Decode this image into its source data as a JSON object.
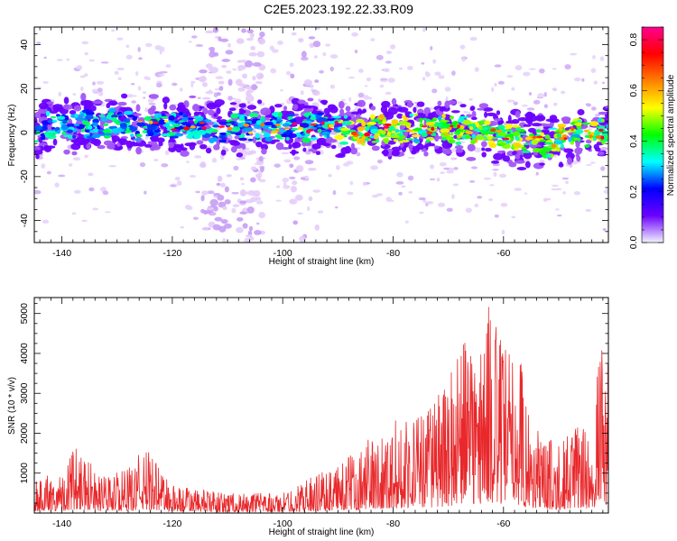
{
  "title": "C2E5.2023.192.22.33.R09",
  "chart_data": [
    {
      "type": "heatmap",
      "xlabel": "Height of straight line (km)",
      "ylabel": "Frequency (Hz)",
      "xlim": [
        -145,
        -41
      ],
      "ylim": [
        -50,
        48
      ],
      "xticks": [
        -140,
        -120,
        -100,
        -80,
        -60
      ],
      "yticks": [
        -40,
        -20,
        0,
        20,
        40
      ],
      "band_center_hz": [
        [
          -145,
          2
        ],
        [
          -130,
          4
        ],
        [
          -110,
          2
        ],
        [
          -95,
          3
        ],
        [
          -85,
          1
        ],
        [
          -75,
          2
        ],
        [
          -65,
          0
        ],
        [
          -57,
          -3
        ],
        [
          -52,
          -5
        ],
        [
          -48,
          0
        ],
        [
          -41,
          0
        ]
      ],
      "colorbar": {
        "label": "Normalized spectral amplitude",
        "range": [
          0,
          0.85
        ],
        "ticks": [
          0.0,
          0.2,
          0.4,
          0.6,
          0.8
        ],
        "colors": [
          "#f2f2ff",
          "#6b00ff",
          "#0000ff",
          "#00ffff",
          "#00ff00",
          "#ffff00",
          "#ff8000",
          "#ff0000",
          "#ff0090"
        ]
      }
    },
    {
      "type": "line",
      "xlabel": "Height of straight line (km)",
      "ylabel": "SNR (10 * v/v)",
      "xlim": [
        -145,
        -41
      ],
      "ylim": [
        0,
        5400
      ],
      "xticks": [
        -140,
        -120,
        -100,
        -80,
        -60
      ],
      "yticks": [
        1000,
        2000,
        3000,
        4000,
        5000
      ],
      "color": "#e8282b",
      "envelope": [
        [
          -145,
          900
        ],
        [
          -140,
          1000
        ],
        [
          -137,
          1900
        ],
        [
          -133,
          900
        ],
        [
          -128,
          1100
        ],
        [
          -125,
          1700
        ],
        [
          -120,
          700
        ],
        [
          -110,
          500
        ],
        [
          -100,
          500
        ],
        [
          -95,
          900
        ],
        [
          -90,
          1200
        ],
        [
          -85,
          1800
        ],
        [
          -80,
          2300
        ],
        [
          -75,
          2600
        ],
        [
          -70,
          3300
        ],
        [
          -68,
          4600
        ],
        [
          -65,
          4000
        ],
        [
          -63,
          5400
        ],
        [
          -60,
          4300
        ],
        [
          -57,
          4200
        ],
        [
          -55,
          2200
        ],
        [
          -50,
          1700
        ],
        [
          -46,
          2400
        ],
        [
          -44,
          1600
        ],
        [
          -43,
          4200
        ],
        [
          -41,
          4000
        ]
      ]
    }
  ]
}
